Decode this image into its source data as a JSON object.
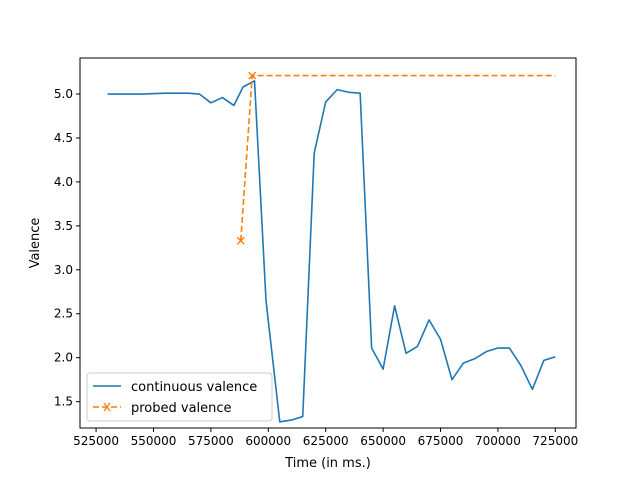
{
  "chart_data": {
    "type": "line",
    "title": "",
    "xlabel": "Time (in ms.)",
    "ylabel": "Valence",
    "xlim": [
      518000,
      734000
    ],
    "ylim": [
      1.2,
      5.41
    ],
    "xticks": [
      525000,
      550000,
      575000,
      600000,
      625000,
      650000,
      675000,
      700000,
      725000
    ],
    "xtick_labels": [
      "525000",
      "550000",
      "575000",
      "600000",
      "625000",
      "650000",
      "675000",
      "700000",
      "725000"
    ],
    "yticks": [
      1.5,
      2.0,
      2.5,
      3.0,
      3.5,
      4.0,
      4.5,
      5.0
    ],
    "ytick_labels": [
      "1.5",
      "2.0",
      "2.5",
      "3.0",
      "3.5",
      "4.0",
      "4.5",
      "5.0"
    ],
    "grid": false,
    "legend_position": "lower-left",
    "series": [
      {
        "name": "continuous valence",
        "color": "#1f77b4",
        "style": "solid",
        "marker": "none",
        "x": [
          530000,
          545000,
          555000,
          565000,
          570000,
          575000,
          580000,
          585000,
          589000,
          594000,
          599000,
          605000,
          610000,
          615000,
          620000,
          625000,
          630000,
          635000,
          640000,
          645000,
          650000,
          655000,
          660000,
          665000,
          670000,
          675000,
          680000,
          685000,
          690000,
          695000,
          700000,
          705000,
          710000,
          715000,
          720000,
          725000
        ],
        "y": [
          5.0,
          5.0,
          5.01,
          5.01,
          5.0,
          4.9,
          4.96,
          4.87,
          5.08,
          5.15,
          2.65,
          1.27,
          1.29,
          1.33,
          4.33,
          4.91,
          5.05,
          5.02,
          5.01,
          2.11,
          1.87,
          2.59,
          2.05,
          2.13,
          2.43,
          2.21,
          1.75,
          1.94,
          1.99,
          2.07,
          2.11,
          2.11,
          1.91,
          1.64,
          1.97,
          2.01
        ]
      },
      {
        "name": "probed valence",
        "color": "#ff7f0e",
        "style": "dashed",
        "marker": "x",
        "x": [
          588000,
          593000,
          725000
        ],
        "y": [
          3.33,
          5.21,
          5.21
        ],
        "marked_points": [
          [
            588000,
            3.33
          ],
          [
            593000,
            5.21
          ]
        ]
      }
    ]
  }
}
